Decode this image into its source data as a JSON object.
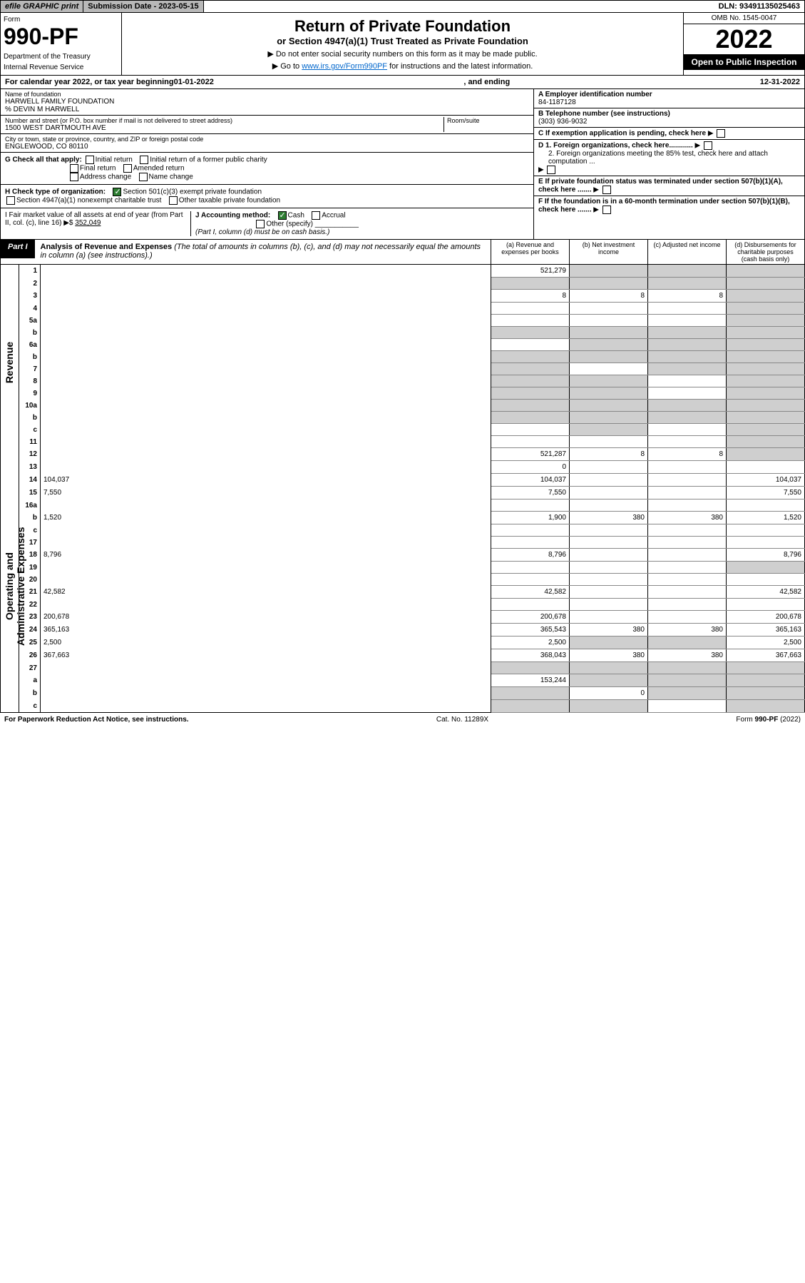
{
  "topbar": {
    "efile": "efile GRAPHIC print",
    "subdate": "Submission Date - 2023-05-15",
    "dln": "DLN: 93491135025463"
  },
  "header": {
    "form_label": "Form",
    "form_num": "990-PF",
    "dept1": "Department of the Treasury",
    "dept2": "Internal Revenue Service",
    "title": "Return of Private Foundation",
    "subtitle": "or Section 4947(a)(1) Trust Treated as Private Foundation",
    "instr1": "▶ Do not enter social security numbers on this form as it may be made public.",
    "instr2_pre": "▶ Go to ",
    "instr2_link": "www.irs.gov/Form990PF",
    "instr2_post": " for instructions and the latest information.",
    "omb": "OMB No. 1545-0047",
    "year": "2022",
    "open": "Open to Public Inspection"
  },
  "calyear": {
    "pre": "For calendar year 2022, or tax year beginning ",
    "begin": "01-01-2022",
    "mid": ", and ending ",
    "end": "12-31-2022"
  },
  "entity": {
    "name_label": "Name of foundation",
    "name": "HARWELL FAMILY FOUNDATION",
    "care": "% DEVIN M HARWELL",
    "addr_label": "Number and street (or P.O. box number if mail is not delivered to street address)",
    "addr": "1500 WEST DARTMOUTH AVE",
    "room_label": "Room/suite",
    "city_label": "City or town, state or province, country, and ZIP or foreign postal code",
    "city": "ENGLEWOOD, CO  80110",
    "ein_label": "A Employer identification number",
    "ein": "84-1187128",
    "tel_label": "B Telephone number (see instructions)",
    "tel": "(303) 936-9032",
    "c_label": "C If exemption application is pending, check here",
    "d1": "D 1. Foreign organizations, check here............",
    "d2": "2. Foreign organizations meeting the 85% test, check here and attach computation ...",
    "e_label": "E  If private foundation status was terminated under section 507(b)(1)(A), check here .......",
    "f_label": "F  If the foundation is in a 60-month termination under section 507(b)(1)(B), check here .......",
    "g_label": "G Check all that apply:",
    "g_opts": [
      "Initial return",
      "Initial return of a former public charity",
      "Final return",
      "Amended return",
      "Address change",
      "Name change"
    ],
    "h_label": "H Check type of organization:",
    "h1": "Section 501(c)(3) exempt private foundation",
    "h2": "Section 4947(a)(1) nonexempt charitable trust",
    "h3": "Other taxable private foundation",
    "i_label": "I Fair market value of all assets at end of year (from Part II, col. (c), line 16) ▶$",
    "i_val": "352,049",
    "j_label": "J Accounting method:",
    "j_cash": "Cash",
    "j_accrual": "Accrual",
    "j_other": "Other (specify)",
    "j_note": "(Part I, column (d) must be on cash basis.)"
  },
  "part1": {
    "tab": "Part I",
    "title": "Analysis of Revenue and Expenses",
    "note": " (The total of amounts in columns (b), (c), and (d) may not necessarily equal the amounts in column (a) (see instructions).)",
    "col_a": "(a)   Revenue and expenses per books",
    "col_b": "(b)   Net investment income",
    "col_c": "(c)   Adjusted net income",
    "col_d": "(d)   Disbursements for charitable purposes (cash basis only)"
  },
  "side_labels": {
    "rev": "Revenue",
    "exp": "Operating and Administrative Expenses"
  },
  "rows": [
    {
      "n": "1",
      "d": "",
      "a": "521,279",
      "b": "",
      "c": "",
      "shade": [
        "b",
        "c",
        "d"
      ]
    },
    {
      "n": "2",
      "d": "",
      "a": "",
      "b": "",
      "c": "",
      "shade": [
        "a",
        "b",
        "c",
        "d"
      ]
    },
    {
      "n": "3",
      "d": "",
      "a": "8",
      "b": "8",
      "c": "8",
      "shade": [
        "d"
      ]
    },
    {
      "n": "4",
      "d": "",
      "a": "",
      "b": "",
      "c": "",
      "shade": [
        "d"
      ]
    },
    {
      "n": "5a",
      "d": "",
      "a": "",
      "b": "",
      "c": "",
      "shade": [
        "d"
      ]
    },
    {
      "n": "b",
      "d": "",
      "a": "",
      "b": "",
      "c": "",
      "shade": [
        "a",
        "b",
        "c",
        "d"
      ]
    },
    {
      "n": "6a",
      "d": "",
      "a": "",
      "b": "",
      "c": "",
      "shade": [
        "b",
        "c",
        "d"
      ]
    },
    {
      "n": "b",
      "d": "",
      "a": "",
      "b": "",
      "c": "",
      "shade": [
        "a",
        "b",
        "c",
        "d"
      ]
    },
    {
      "n": "7",
      "d": "",
      "a": "",
      "b": "",
      "c": "",
      "shade": [
        "a",
        "c",
        "d"
      ]
    },
    {
      "n": "8",
      "d": "",
      "a": "",
      "b": "",
      "c": "",
      "shade": [
        "a",
        "b",
        "d"
      ]
    },
    {
      "n": "9",
      "d": "",
      "a": "",
      "b": "",
      "c": "",
      "shade": [
        "a",
        "b",
        "d"
      ]
    },
    {
      "n": "10a",
      "d": "",
      "a": "",
      "b": "",
      "c": "",
      "shade": [
        "a",
        "b",
        "c",
        "d"
      ]
    },
    {
      "n": "b",
      "d": "",
      "a": "",
      "b": "",
      "c": "",
      "shade": [
        "a",
        "b",
        "c",
        "d"
      ]
    },
    {
      "n": "c",
      "d": "",
      "a": "",
      "b": "",
      "c": "",
      "shade": [
        "b",
        "d"
      ]
    },
    {
      "n": "11",
      "d": "",
      "a": "",
      "b": "",
      "c": "",
      "shade": [
        "d"
      ]
    },
    {
      "n": "12",
      "d": "",
      "a": "521,287",
      "b": "8",
      "c": "8",
      "shade": [
        "d"
      ]
    },
    {
      "n": "13",
      "d": "",
      "a": "0",
      "b": "",
      "c": ""
    },
    {
      "n": "14",
      "d": "104,037",
      "a": "104,037",
      "b": "",
      "c": ""
    },
    {
      "n": "15",
      "d": "7,550",
      "a": "7,550",
      "b": "",
      "c": ""
    },
    {
      "n": "16a",
      "d": "",
      "a": "",
      "b": "",
      "c": ""
    },
    {
      "n": "b",
      "d": "1,520",
      "a": "1,900",
      "b": "380",
      "c": "380"
    },
    {
      "n": "c",
      "d": "",
      "a": "",
      "b": "",
      "c": ""
    },
    {
      "n": "17",
      "d": "",
      "a": "",
      "b": "",
      "c": ""
    },
    {
      "n": "18",
      "d": "8,796",
      "a": "8,796",
      "b": "",
      "c": ""
    },
    {
      "n": "19",
      "d": "",
      "a": "",
      "b": "",
      "c": "",
      "shade": [
        "d"
      ]
    },
    {
      "n": "20",
      "d": "",
      "a": "",
      "b": "",
      "c": ""
    },
    {
      "n": "21",
      "d": "42,582",
      "a": "42,582",
      "b": "",
      "c": ""
    },
    {
      "n": "22",
      "d": "",
      "a": "",
      "b": "",
      "c": ""
    },
    {
      "n": "23",
      "d": "200,678",
      "a": "200,678",
      "b": "",
      "c": ""
    },
    {
      "n": "24",
      "d": "365,163",
      "a": "365,543",
      "b": "380",
      "c": "380"
    },
    {
      "n": "25",
      "d": "2,500",
      "a": "2,500",
      "b": "",
      "c": "",
      "shade": [
        "b",
        "c"
      ]
    },
    {
      "n": "26",
      "d": "367,663",
      "a": "368,043",
      "b": "380",
      "c": "380"
    },
    {
      "n": "27",
      "d": "",
      "a": "",
      "b": "",
      "c": "",
      "shade": [
        "a",
        "b",
        "c",
        "d"
      ]
    },
    {
      "n": "a",
      "d": "",
      "a": "153,244",
      "b": "",
      "c": "",
      "shade": [
        "b",
        "c",
        "d"
      ]
    },
    {
      "n": "b",
      "d": "",
      "a": "",
      "b": "0",
      "c": "",
      "shade": [
        "a",
        "c",
        "d"
      ]
    },
    {
      "n": "c",
      "d": "",
      "a": "",
      "b": "",
      "c": "",
      "shade": [
        "a",
        "b",
        "d"
      ]
    }
  ],
  "footer": {
    "left": "For Paperwork Reduction Act Notice, see instructions.",
    "mid": "Cat. No. 11289X",
    "right": "Form 990-PF (2022)"
  }
}
